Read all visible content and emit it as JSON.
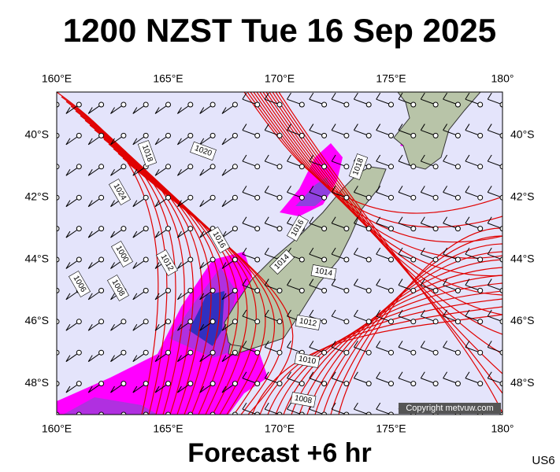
{
  "title": "1200 NZST Tue 16 Sep 2025",
  "lon_labels": [
    "160°E",
    "165°E",
    "170°E",
    "175°E",
    "180°"
  ],
  "lat_labels": [
    "40°S",
    "42°S",
    "44°S",
    "46°S",
    "48°S"
  ],
  "isobar_labels": [
    1018,
    1020,
    1024,
    1016,
    1012,
    1000,
    1006,
    1008,
    1016,
    1018,
    1014,
    1014,
    1012,
    1010,
    1008
  ],
  "copyright": "Copyright metvuw.com",
  "subtitle": "Forecast +6 hr",
  "product_code": "US6"
}
